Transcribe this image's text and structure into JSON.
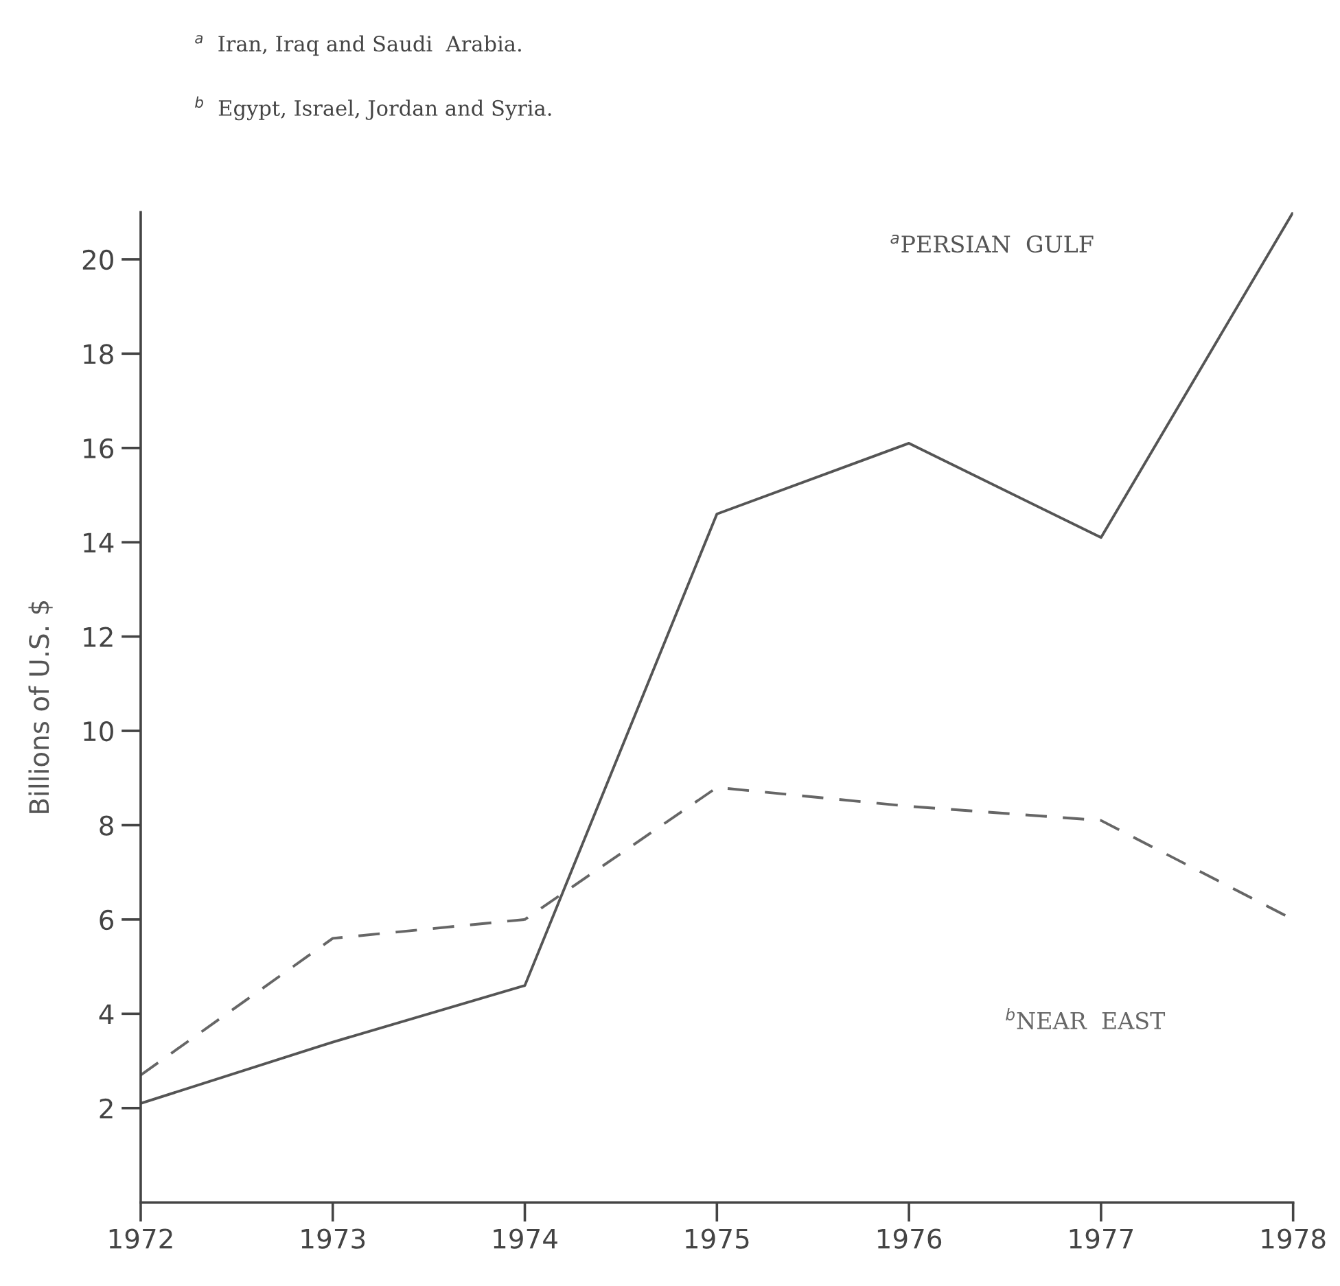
{
  "chart_data": {
    "type": "line",
    "x": [
      1972,
      1973,
      1974,
      1975,
      1976,
      1977,
      1978
    ],
    "series": [
      {
        "name": "$^{a}$PERSIAN  GULF",
        "color": "#555555",
        "line_style": "solid",
        "values": [
          2.1,
          3.4,
          4.6,
          14.6,
          16.1,
          14.1,
          21.0
        ]
      },
      {
        "name": "$^{b}$NEAR  EAST",
        "color": "#666666",
        "line_style": "dashed",
        "values": [
          2.7,
          5.6,
          6.0,
          8.8,
          8.4,
          8.1,
          6.0
        ]
      }
    ],
    "ylabel": "Billions of U.S. $",
    "annotations": [
      "$^{a}$  Iran, Iraq and Saudi  Arabia.",
      "$^{b}$  Egypt, Israel, Jordan and Syria."
    ],
    "xlim": [
      1972,
      1978
    ],
    "ylim": [
      0,
      21
    ],
    "xticks": [
      1972,
      1973,
      1974,
      1975,
      1976,
      1977,
      1978
    ],
    "yticks": [
      2,
      4,
      6,
      8,
      10,
      12,
      14,
      16,
      18,
      20
    ],
    "grid": false,
    "legend": false,
    "marker": "none"
  }
}
